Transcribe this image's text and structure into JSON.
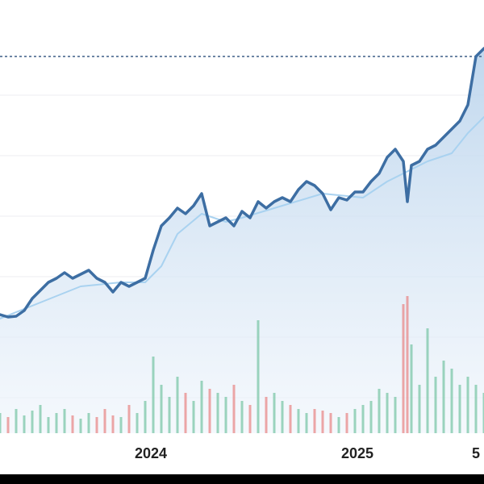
{
  "chart_data": {
    "type": "line",
    "xlim": [
      0,
      600
    ],
    "xticks": [
      {
        "value": 187,
        "label": "2024"
      },
      {
        "value": 443,
        "label": "2025"
      },
      {
        "value": 590,
        "label": "5"
      }
    ],
    "ylim": [
      0,
      537
    ],
    "grid_y": [
      44,
      119,
      194,
      269,
      344,
      419
    ],
    "reference_line": 467,
    "series": [
      {
        "color": "#3d6ea3",
        "x": [
          0,
          10,
          20,
          30,
          40,
          50,
          60,
          70,
          80,
          90,
          100,
          110,
          120,
          130,
          140,
          150,
          160,
          170,
          180,
          190,
          200,
          210,
          220,
          230,
          240,
          250,
          260,
          270,
          280,
          290,
          300,
          310,
          320,
          330,
          340,
          350,
          360,
          370,
          380,
          390,
          400,
          410,
          420,
          430,
          440,
          450,
          460,
          470,
          480,
          490,
          500,
          505,
          510,
          520,
          530,
          540,
          550,
          560,
          570,
          580,
          590,
          600
        ],
        "values": [
          147,
          144,
          145,
          152,
          167,
          177,
          187,
          192,
          199,
          192,
          197,
          202,
          192,
          187,
          175,
          187,
          182,
          187,
          192,
          227,
          257,
          267,
          279,
          272,
          282,
          297,
          257,
          262,
          267,
          257,
          275,
          267,
          287,
          279,
          287,
          292,
          287,
          302,
          312,
          307,
          297,
          277,
          292,
          289,
          299,
          299,
          312,
          322,
          342,
          352,
          337,
          287,
          332,
          337,
          352,
          357,
          367,
          377,
          387,
          407,
          467,
          477
        ]
      },
      {
        "color": "#a9d2f0",
        "x": [
          0,
          50,
          100,
          150,
          180,
          200,
          220,
          250,
          280,
          300,
          350,
          400,
          450,
          480,
          500,
          530,
          560,
          580,
          600
        ],
        "values": [
          142,
          162,
          182,
          187,
          187,
          207,
          247,
          272,
          262,
          267,
          282,
          297,
          292,
          312,
          322,
          337,
          347,
          372,
          392
        ]
      }
    ],
    "volume": {
      "axis": "y2",
      "up_color": "#7cc7a8",
      "down_color": "#e88a8a",
      "values": [
        25,
        20,
        30,
        22,
        28,
        35,
        20,
        25,
        30,
        22,
        18,
        25,
        20,
        30,
        22,
        20,
        35,
        25,
        40,
        95,
        60,
        45,
        70,
        50,
        40,
        65,
        55,
        50,
        45,
        60,
        40,
        35,
        140,
        45,
        50,
        40,
        35,
        30,
        25,
        30,
        28,
        25,
        20,
        25,
        30,
        35,
        40,
        55,
        50,
        45,
        160,
        170,
        110,
        60,
        130,
        70,
        90,
        80,
        60,
        70,
        60,
        50
      ]
    },
    "y2lim": [
      0,
      537
    ]
  }
}
